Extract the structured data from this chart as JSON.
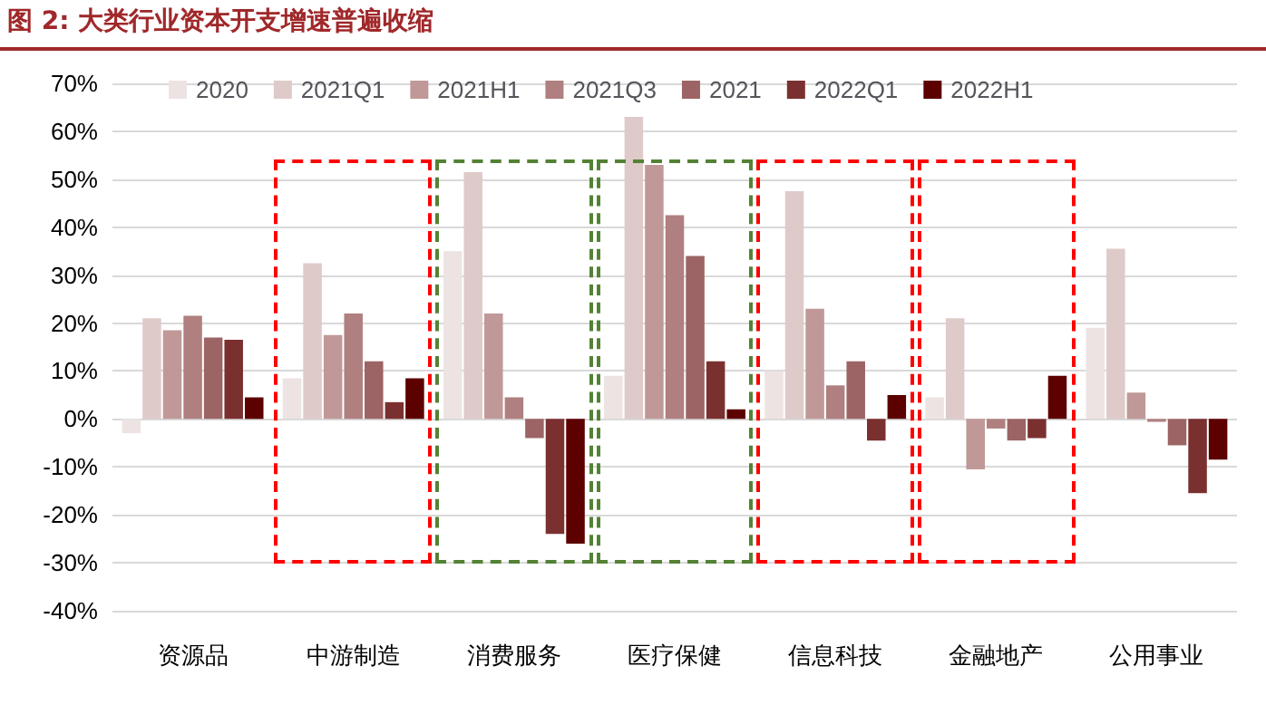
{
  "chart_data": {
    "type": "bar",
    "title": "图 2: 大类行业资本开支增速普遍收缩",
    "categories": [
      "资源品",
      "中游制造",
      "消费服务",
      "医疗保健",
      "信息科技",
      "金融地产",
      "公用事业"
    ],
    "series": [
      {
        "name": "2020",
        "color": "#ede3e3",
        "values": [
          -3,
          8.5,
          35,
          9,
          10,
          4.5,
          19
        ]
      },
      {
        "name": "2021Q1",
        "color": "#dfcaca",
        "values": [
          21,
          32.5,
          51.5,
          63,
          47.5,
          21,
          35.5
        ]
      },
      {
        "name": "2021H1",
        "color": "#c09898",
        "values": [
          18.5,
          17.5,
          22,
          53,
          23,
          -10.5,
          5.5
        ]
      },
      {
        "name": "2021Q3",
        "color": "#b07f7f",
        "values": [
          21.5,
          22,
          4.5,
          42.5,
          7,
          -2,
          -0.6
        ]
      },
      {
        "name": "2021",
        "color": "#9c6464",
        "values": [
          17,
          12,
          -4,
          34,
          12,
          -4.5,
          -5.5
        ]
      },
      {
        "name": "2022Q1",
        "color": "#7b3030",
        "values": [
          16.5,
          3.5,
          -24,
          12,
          -4.5,
          -4,
          -15.5
        ]
      },
      {
        "name": "2022H1",
        "color": "#5c0000",
        "values": [
          4.5,
          8.5,
          -26,
          2,
          5,
          9,
          -8.5
        ]
      }
    ],
    "ylim": [
      -40,
      70
    ],
    "yticks": [
      {
        "value": -40,
        "label": "-40%"
      },
      {
        "value": -30,
        "label": "-30%"
      },
      {
        "value": -20,
        "label": "-20%"
      },
      {
        "value": -10,
        "label": "-10%"
      },
      {
        "value": 0,
        "label": "0%"
      },
      {
        "value": 10,
        "label": "10%"
      },
      {
        "value": 20,
        "label": "20%"
      },
      {
        "value": 30,
        "label": "30%"
      },
      {
        "value": 40,
        "label": "40%"
      },
      {
        "value": 50,
        "label": "50%"
      },
      {
        "value": 60,
        "label": "60%"
      },
      {
        "value": 70,
        "label": "70%"
      }
    ],
    "grid": "y",
    "legend": "top"
  }
}
